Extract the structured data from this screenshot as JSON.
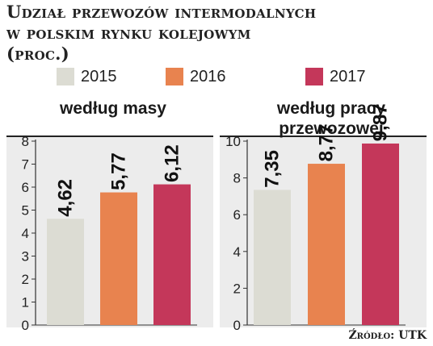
{
  "header": {
    "title_line1": "Udział przewozów intermodalnych",
    "title_line2": "w polskim rynku kolejowym",
    "title_line3": "(proc.)"
  },
  "legend": [
    {
      "label": "2015",
      "color": "#dcdcd3"
    },
    {
      "label": "2016",
      "color": "#e8834f"
    },
    {
      "label": "2017",
      "color": "#c4375a"
    }
  ],
  "source": "Źródło: UTK",
  "chart_data": [
    {
      "type": "bar",
      "title": "według masy",
      "categories": [
        "2015",
        "2016",
        "2017"
      ],
      "values": [
        4.62,
        5.77,
        6.12
      ],
      "value_labels": [
        "4,62",
        "5,77",
        "6,12"
      ],
      "ylim": [
        0,
        8
      ],
      "yticks": [
        "0",
        "1",
        "2",
        "3",
        "4",
        "5",
        "6",
        "7",
        "8"
      ],
      "grid": false
    },
    {
      "type": "bar",
      "title": "według pracy przewozowej",
      "categories": [
        "2015",
        "2016",
        "2017"
      ],
      "values": [
        7.35,
        8.77,
        9.87
      ],
      "value_labels": [
        "7,35",
        "8,77",
        "9,87"
      ],
      "ylim": [
        0,
        10
      ],
      "yticks": [
        "0",
        "2",
        "4",
        "6",
        "8",
        "10"
      ],
      "grid": false
    }
  ]
}
